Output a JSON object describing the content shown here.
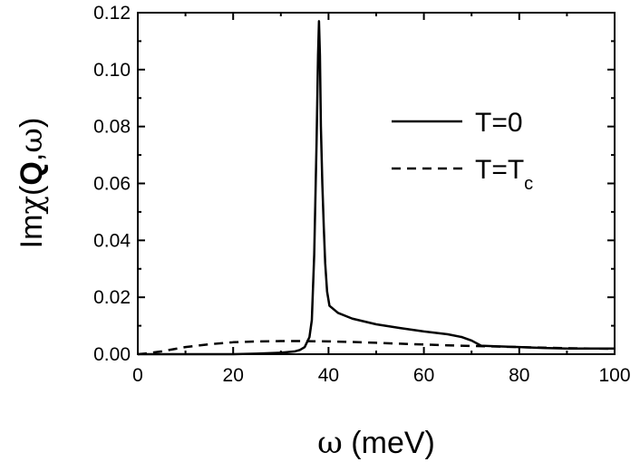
{
  "chart_data": {
    "type": "line",
    "title": "",
    "xlabel": "ω (meV)",
    "ylabel": "Imχ(Q,ω)",
    "xlim": [
      0,
      100
    ],
    "ylim": [
      0,
      0.12
    ],
    "x_ticks": [
      "0",
      "20",
      "40",
      "60",
      "80",
      "100"
    ],
    "y_ticks": [
      "0.00",
      "0.02",
      "0.04",
      "0.06",
      "0.08",
      "0.10",
      "0.12"
    ],
    "legend_position": "upper-right",
    "series": [
      {
        "name": "T=0",
        "style": "solid",
        "color": "#000000",
        "x": [
          0,
          10,
          20,
          25,
          30,
          33,
          34,
          35,
          36,
          36.5,
          37,
          37.5,
          37.8,
          38.0,
          38.2,
          38.4,
          38.7,
          39.0,
          39.3,
          39.7,
          40.2,
          42,
          45,
          50,
          55,
          60,
          65,
          68,
          70,
          72,
          75,
          80,
          85,
          90,
          95,
          100
        ],
        "y": [
          0,
          0,
          0,
          0.0002,
          0.0005,
          0.001,
          0.0015,
          0.0025,
          0.006,
          0.012,
          0.035,
          0.075,
          0.105,
          0.117,
          0.105,
          0.08,
          0.06,
          0.045,
          0.032,
          0.022,
          0.017,
          0.0145,
          0.0125,
          0.0105,
          0.0092,
          0.008,
          0.007,
          0.006,
          0.0048,
          0.003,
          0.0028,
          0.0025,
          0.0022,
          0.002,
          0.002,
          0.002
        ]
      },
      {
        "name": "T=T",
        "name_subscript": "c",
        "style": "dashed",
        "color": "#000000",
        "x": [
          0,
          2,
          5,
          10,
          15,
          20,
          25,
          30,
          35,
          40,
          45,
          50,
          55,
          60,
          65,
          70,
          75,
          80,
          85,
          90,
          95,
          100
        ],
        "y": [
          0,
          0.0003,
          0.001,
          0.0025,
          0.0035,
          0.0042,
          0.0045,
          0.0046,
          0.0046,
          0.0045,
          0.0043,
          0.004,
          0.0037,
          0.0034,
          0.0031,
          0.0029,
          0.0027,
          0.0025,
          0.0023,
          0.0021,
          0.002,
          0.0019
        ]
      }
    ]
  }
}
